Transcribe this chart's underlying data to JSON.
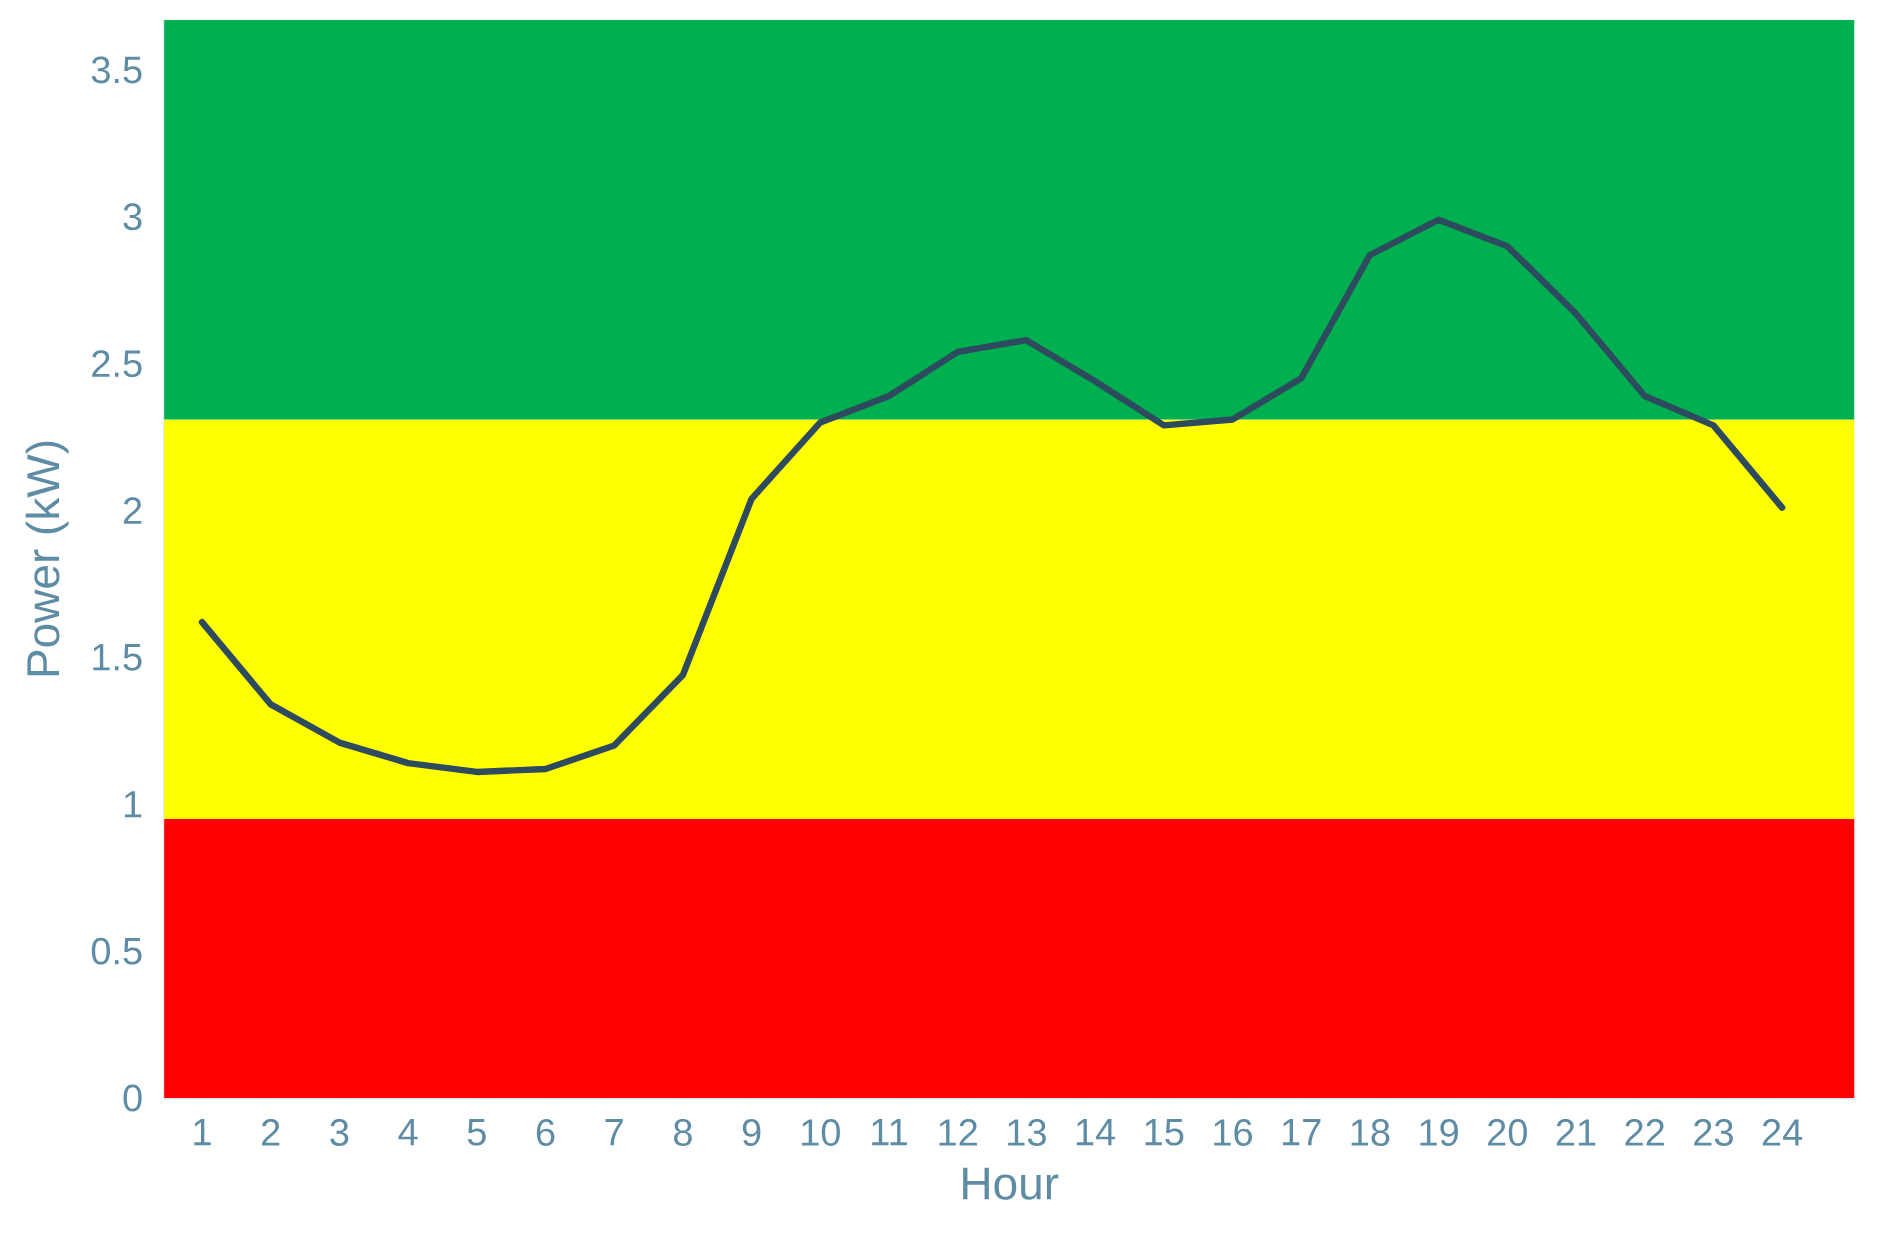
{
  "chart_data": {
    "type": "line",
    "xlabel": "Hour",
    "ylabel": "Power (kW)",
    "categories": [
      "1",
      "2",
      "3",
      "4",
      "5",
      "6",
      "7",
      "8",
      "9",
      "10",
      "11",
      "12",
      "13",
      "14",
      "15",
      "16",
      "17",
      "18",
      "19",
      "20",
      "21",
      "22",
      "23",
      "24"
    ],
    "ylim": [
      0,
      3.67
    ],
    "yticks": [
      0,
      0.5,
      1,
      1.5,
      2,
      2.5,
      3,
      3.5
    ],
    "bands": [
      {
        "axis": "y",
        "from": 0,
        "to": 0.95,
        "color": "#ff0000"
      },
      {
        "axis": "y",
        "from": 0.95,
        "to": 2.31,
        "color": "#ffff00"
      },
      {
        "axis": "y",
        "from": 2.31,
        "to": 3.67,
        "color": "#00b050"
      }
    ],
    "series": [
      {
        "color": "#2e4a5f",
        "values": [
          1.62,
          1.34,
          1.21,
          1.14,
          1.11,
          1.12,
          1.2,
          1.44,
          2.04,
          2.3,
          2.39,
          2.54,
          2.58,
          2.44,
          2.29,
          2.31,
          2.45,
          2.87,
          2.99,
          2.9,
          2.67,
          2.39,
          2.29,
          2.01
        ]
      }
    ]
  }
}
